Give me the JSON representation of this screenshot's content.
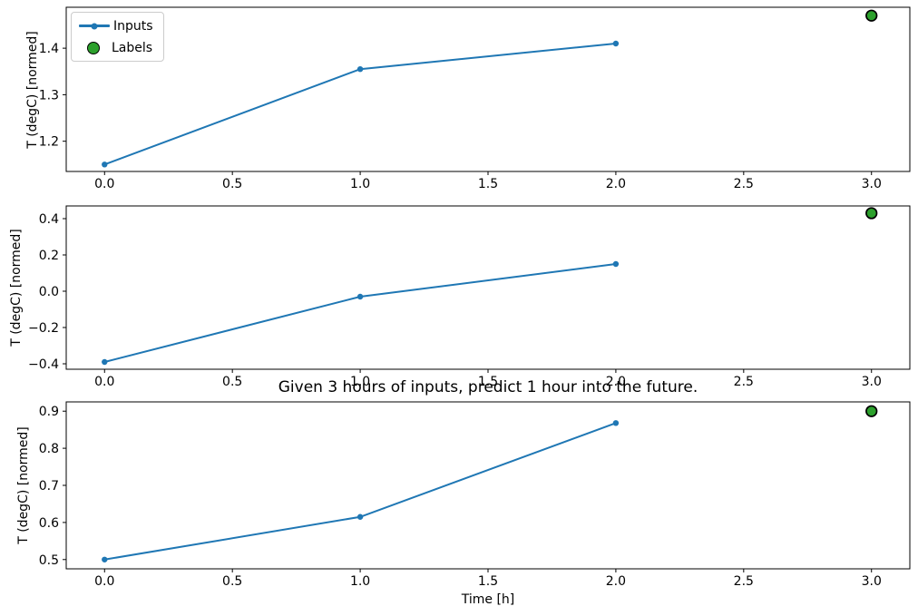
{
  "figure": {
    "background": "#ffffff"
  },
  "legend": {
    "position": "upper-left",
    "items": [
      {
        "label": "Inputs",
        "marker": "line-dot"
      },
      {
        "label": "Labels",
        "marker": "circle"
      }
    ]
  },
  "colors": {
    "inputs": "#1f77b4",
    "labels_fill": "#2ca02c",
    "labels_edge": "#000000",
    "axis": "#000000",
    "text": "#000000"
  },
  "chart_data": [
    {
      "type": "line",
      "title": "",
      "xlabel": "",
      "ylabel": "T (degC) [normed]",
      "xlim": [
        -0.15,
        3.15
      ],
      "ylim": [
        1.135,
        1.488
      ],
      "xticks": [
        0.0,
        0.5,
        1.0,
        1.5,
        2.0,
        2.5,
        3.0
      ],
      "xtick_labels": [
        "0.0",
        "0.5",
        "1.0",
        "1.5",
        "2.0",
        "2.5",
        "3.0"
      ],
      "yticks": [
        1.2,
        1.3,
        1.4
      ],
      "ytick_labels": [
        "1.2",
        "1.3",
        "1.4"
      ],
      "grid": false,
      "series": [
        {
          "name": "Inputs",
          "x": [
            0,
            1,
            2
          ],
          "values": [
            1.15,
            1.355,
            1.41
          ]
        }
      ],
      "label_point": {
        "name": "Labels",
        "x": 3,
        "y": 1.47
      }
    },
    {
      "type": "line",
      "title": "",
      "xlabel": "",
      "ylabel": "T (degC) [normed]",
      "xlim": [
        -0.15,
        3.15
      ],
      "ylim": [
        -0.43,
        0.47
      ],
      "xticks": [
        0.0,
        0.5,
        1.0,
        1.5,
        2.0,
        2.5,
        3.0
      ],
      "xtick_labels": [
        "0.0",
        "0.5",
        "1.0",
        "1.5",
        "2.0",
        "2.5",
        "3.0"
      ],
      "yticks": [
        -0.4,
        -0.2,
        0.0,
        0.2,
        0.4
      ],
      "ytick_labels": [
        "−0.4",
        "−0.2",
        "0.0",
        "0.2",
        "0.4"
      ],
      "grid": false,
      "series": [
        {
          "name": "Inputs",
          "x": [
            0,
            1,
            2
          ],
          "values": [
            -0.39,
            -0.03,
            0.15
          ]
        }
      ],
      "label_point": {
        "name": "Labels",
        "x": 3,
        "y": 0.43
      }
    },
    {
      "type": "line",
      "title": "Given 3 hours of inputs, predict 1 hour into the future.",
      "xlabel": "Time [h]",
      "ylabel": "T (degC) [normed]",
      "xlim": [
        -0.15,
        3.15
      ],
      "ylim": [
        0.475,
        0.925
      ],
      "xticks": [
        0.0,
        0.5,
        1.0,
        1.5,
        2.0,
        2.5,
        3.0
      ],
      "xtick_labels": [
        "0.0",
        "0.5",
        "1.0",
        "1.5",
        "2.0",
        "2.5",
        "3.0"
      ],
      "yticks": [
        0.5,
        0.6,
        0.7,
        0.8,
        0.9
      ],
      "ytick_labels": [
        "0.5",
        "0.6",
        "0.7",
        "0.8",
        "0.9"
      ],
      "grid": false,
      "series": [
        {
          "name": "Inputs",
          "x": [
            0,
            1,
            2
          ],
          "values": [
            0.5,
            0.615,
            0.868
          ]
        }
      ],
      "label_point": {
        "name": "Labels",
        "x": 3,
        "y": 0.9
      }
    }
  ]
}
